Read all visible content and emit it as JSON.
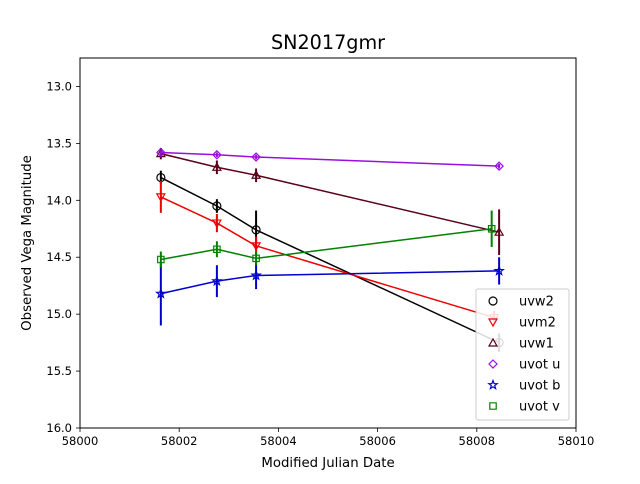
{
  "chart_data": {
    "type": "line",
    "title": "SN2017gmr",
    "xlabel": "Modified Julian Date",
    "ylabel": "Observed Vega Magnitude",
    "xlim": [
      58000,
      58010
    ],
    "ylim": [
      16.0,
      12.75
    ],
    "y_inverted": true,
    "grid": false,
    "legend_placement": "lower-right",
    "x_ticks": [
      58000,
      58002,
      58004,
      58006,
      58008,
      58010
    ],
    "x_tick_labels": [
      "58000",
      "58002",
      "58004",
      "58006",
      "58008",
      "58010"
    ],
    "y_ticks": [
      13.0,
      13.5,
      14.0,
      14.5,
      15.0,
      15.5,
      16.0
    ],
    "y_tick_labels": [
      "13.0",
      "13.5",
      "14.0",
      "14.5",
      "15.0",
      "15.5",
      "16.0"
    ],
    "series": [
      {
        "name": "uvw2",
        "color": "#000000",
        "marker": "circle",
        "x": [
          58001.63,
          58002.76,
          58003.55,
          58008.45
        ],
        "y": [
          13.8,
          14.05,
          14.26,
          15.25
        ],
        "err": [
          0.06,
          0.06,
          0.17,
          0.08
        ]
      },
      {
        "name": "uvm2",
        "color": "#ee0000",
        "marker": "triangle-down",
        "x": [
          58001.63,
          58002.76,
          58003.55,
          58008.35
        ],
        "y": [
          13.97,
          14.2,
          14.4,
          15.03
        ],
        "err": [
          0.14,
          0.08,
          0.08,
          0.06
        ]
      },
      {
        "name": "uvw1",
        "color": "#5a0018",
        "marker": "triangle-up",
        "x": [
          58001.63,
          58002.76,
          58003.55,
          58008.45
        ],
        "y": [
          13.59,
          13.71,
          13.78,
          14.28
        ],
        "err": [
          0.05,
          0.06,
          0.06,
          0.2
        ]
      },
      {
        "name": "uvot u",
        "color": "#9b0ee0",
        "marker": "diamond",
        "x": [
          58001.63,
          58002.76,
          58003.55,
          58008.45
        ],
        "y": [
          13.58,
          13.6,
          13.62,
          13.7
        ],
        "err": [
          0.02,
          0.02,
          0.02,
          0.02
        ]
      },
      {
        "name": "uvot b",
        "color": "#0000cc",
        "marker": "star",
        "x": [
          58001.63,
          58002.76,
          58003.55,
          58008.45
        ],
        "y": [
          14.82,
          14.71,
          14.66,
          14.62
        ],
        "err": [
          0.28,
          0.14,
          0.12,
          0.12
        ]
      },
      {
        "name": "uvot v",
        "color": "#008000",
        "marker": "square",
        "x": [
          58001.63,
          58002.76,
          58003.55,
          58008.3
        ],
        "y": [
          14.52,
          14.43,
          14.51,
          14.25
        ],
        "err": [
          0.07,
          0.07,
          0.06,
          0.16
        ]
      }
    ]
  }
}
